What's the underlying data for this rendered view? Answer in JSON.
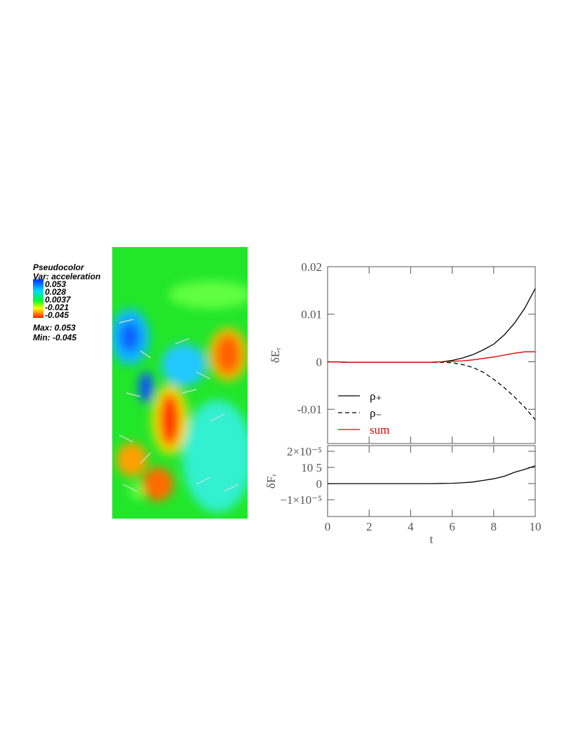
{
  "pseudocolor_legend": {
    "title": "Pseudocolor",
    "variable": "Var: acceleration",
    "ticks": [
      0.053,
      0.028,
      0.0037,
      -0.021,
      -0.045
    ],
    "max": "Max:  0.053",
    "min": "Min: -0.045"
  },
  "chart_data": [
    {
      "type": "line",
      "ylabel": "δEᵣ",
      "xlim": [
        0,
        10
      ],
      "ylim": [
        -0.0172,
        0.02
      ],
      "yticks": [
        0.02,
        0.01,
        0,
        -0.01
      ],
      "x": [
        0,
        1,
        2,
        3,
        4,
        5,
        5.5,
        6,
        6.5,
        7,
        7.5,
        8,
        8.5,
        9,
        9.5,
        10
      ],
      "series": [
        {
          "name": "ρ₊",
          "color": "#000000",
          "linestyle": "solid",
          "values": [
            0,
            -0.0001,
            -0.0001,
            -0.0001,
            -0.0001,
            -0.0001,
            0,
            0.0003,
            0.0008,
            0.0015,
            0.0025,
            0.0037,
            0.0056,
            0.0081,
            0.0113,
            0.0154
          ]
        },
        {
          "name": "ρ₋",
          "color": "#000000",
          "linestyle": "dashed",
          "values": [
            0,
            -0.0001,
            -0.0001,
            -0.0001,
            -0.0001,
            -0.0001,
            -0.0001,
            -0.0002,
            -0.0006,
            -0.0012,
            -0.0022,
            -0.0037,
            -0.0054,
            -0.0074,
            -0.0096,
            -0.0122
          ]
        },
        {
          "name": "sum",
          "color": "#e00000",
          "linestyle": "solid",
          "values": [
            0,
            -0.0001,
            -0.0001,
            -0.0001,
            -0.0001,
            -0.0001,
            0,
            0.0001,
            0.0002,
            0.0004,
            0.0007,
            0.001,
            0.0014,
            0.0018,
            0.0021,
            0.0021
          ]
        }
      ]
    },
    {
      "type": "line",
      "xlabel": "t",
      "ylabel": "δFᵣ",
      "xlim": [
        0,
        10
      ],
      "xticks": [
        0,
        2,
        4,
        6,
        8,
        10
      ],
      "ylim": [
        -2.04e-05,
        2.35e-05
      ],
      "yticks": [
        {
          "value": 2e-05,
          "label": "2×10⁻⁵"
        },
        {
          "value": 1e-05,
          "label": "10 5"
        },
        0,
        {
          "value": -1e-05,
          "label": "−1×10⁻⁵"
        }
      ],
      "x": [
        0,
        1,
        2,
        3,
        4,
        5,
        5.5,
        6,
        6.5,
        7,
        7.5,
        8,
        8.5,
        9,
        9.5,
        10
      ],
      "series": [
        {
          "color": "#000000",
          "linestyle": "solid",
          "values": [
            0,
            0,
            0,
            0,
            0,
            0,
            1e-07,
            2e-07,
            5e-07,
            1e-06,
            2e-06,
            3e-06,
            4.5e-06,
            7e-06,
            8.8e-06,
            1.1e-05
          ]
        }
      ]
    }
  ]
}
